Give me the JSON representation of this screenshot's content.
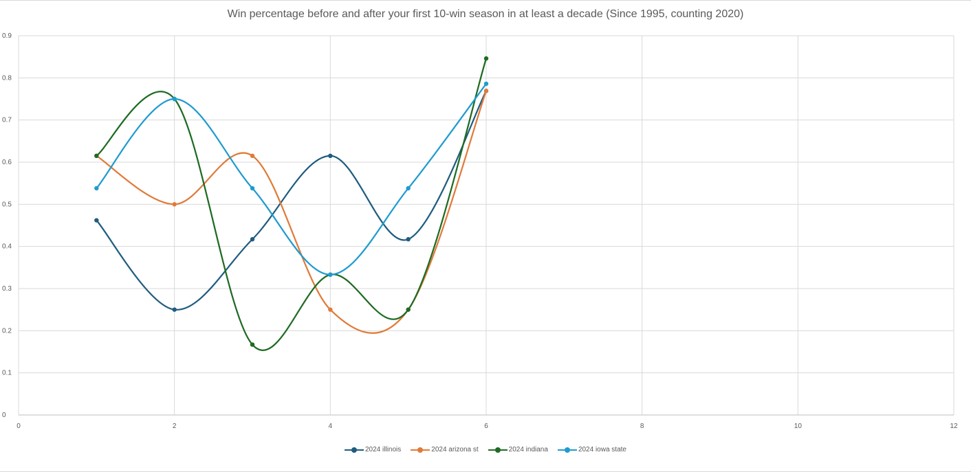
{
  "chart_data": {
    "type": "line",
    "title": "Win percentage before and after your first 10-win season in at least a decade (Since 1995, counting 2020)",
    "xlim": [
      0,
      12
    ],
    "ylim": [
      0,
      0.9
    ],
    "x_ticks": [
      "0",
      "2",
      "4",
      "6",
      "8",
      "10",
      "12"
    ],
    "y_ticks": [
      "0",
      "0.1",
      "0.2",
      "0.3",
      "0.4",
      "0.5",
      "0.6",
      "0.7",
      "0.8",
      "0.9"
    ],
    "grid": true,
    "smooth": true,
    "legend_position": "bottom",
    "x": [
      1,
      2,
      3,
      4,
      5,
      6
    ],
    "series": [
      {
        "name": "2024 illinois",
        "color": "#1f5c80",
        "values": [
          0.462,
          0.25,
          0.417,
          0.615,
          0.417,
          0.769
        ]
      },
      {
        "name": "2024 arizona st",
        "color": "#e07b39",
        "values": [
          0.615,
          0.5,
          0.615,
          0.25,
          0.25,
          0.769
        ]
      },
      {
        "name": "2024 indiana",
        "color": "#1e6b23",
        "values": [
          0.615,
          0.75,
          0.167,
          0.333,
          0.25,
          0.846
        ]
      },
      {
        "name": "2024 iowa state",
        "color": "#1f9bcf",
        "values": [
          0.538,
          0.75,
          0.538,
          0.333,
          0.538,
          0.786
        ]
      }
    ]
  }
}
